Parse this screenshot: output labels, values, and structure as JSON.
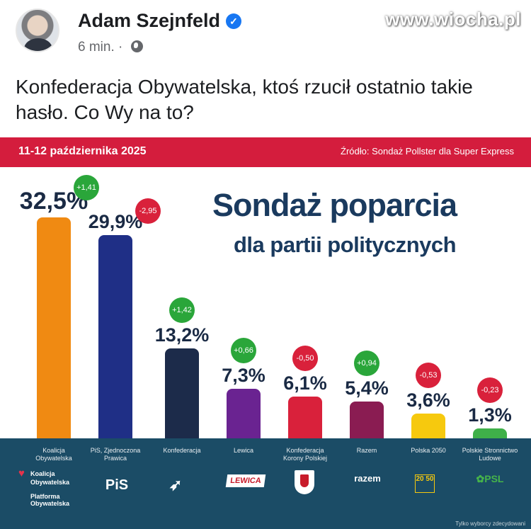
{
  "watermark": "www.wiocha.pl",
  "post": {
    "author": "Adam Szejnfeld",
    "time": "6 min.",
    "separator": "·",
    "text": "Konfederacja Obywatelska, ktoś rzucił ostatnio takie hasło. Co Wy na to?",
    "icons": {
      "verified": "verified-badge-icon",
      "audience": "globe-icon"
    }
  },
  "graphic": {
    "date": "11-12 października 2025",
    "source": "Źródło:  Sondaż Pollster dla Super Express",
    "title_line1": "Sondaż poparcia",
    "title_line2": "dla partii politycznych",
    "disclaimer": "Tylko wyborcy zdecydowani",
    "logos": {
      "ko_line1": "Koalicja",
      "ko_line2": "Obywatelska",
      "ko_line3": "Platforma",
      "ko_line4": "Obywatelska",
      "pis": "PiS",
      "lewica": "LEWICA",
      "razem": "razem",
      "polska2050": "20 50",
      "psl": "✿PSL"
    }
  },
  "chart_data": {
    "type": "bar",
    "title": "Sondaż poparcia dla partii politycznych",
    "categories": [
      "Koalicja Obywatelska",
      "PiS, Zjednoczona Prawica",
      "Konfederacja",
      "Lewica",
      "Konfederacja Korony Polskiej",
      "Razem",
      "Polska 2050",
      "Polskie Stronnictwo Ludowe"
    ],
    "values": [
      32.5,
      29.9,
      13.2,
      7.3,
      6.1,
      5.4,
      3.6,
      1.3
    ],
    "value_labels": [
      "32,5%",
      "29,9%",
      "13,2%",
      "7,3%",
      "6,1%",
      "5,4%",
      "3,6%",
      "1,3%"
    ],
    "changes": [
      "+1,41",
      "-2,95",
      "+1,42",
      "+0,66",
      "-0,50",
      "+0,94",
      "-0,53",
      "-0,23"
    ],
    "change_direction": [
      "up",
      "down",
      "up",
      "up",
      "down",
      "up",
      "down",
      "down"
    ],
    "label_lines": [
      [
        "Koalicja",
        "Obywatelska"
      ],
      [
        "PiS, Zjednoczona",
        "Prawica"
      ],
      [
        "Konfederacja"
      ],
      [
        "Lewica"
      ],
      [
        "Konfederacja",
        "Korony Polskiej"
      ],
      [
        "Razem"
      ],
      [
        "Polska 2050"
      ],
      [
        "Polskie Stronnictwo",
        "Ludowe"
      ]
    ],
    "colors": [
      "#f08a12",
      "#1f2f86",
      "#1c2b4a",
      "#6a2391",
      "#d9213b",
      "#8a1c52",
      "#f6c90e",
      "#3fb049"
    ],
    "ylim": [
      0,
      35
    ]
  }
}
